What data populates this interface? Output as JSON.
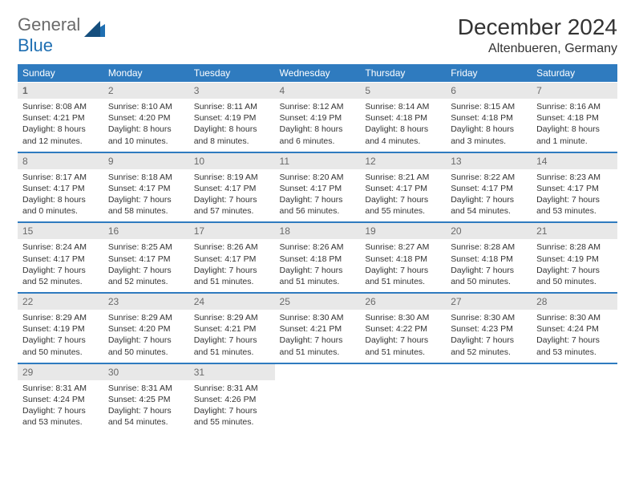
{
  "logo": {
    "general": "General",
    "blue": "Blue"
  },
  "title": "December 2024",
  "location": "Altenbueren, Germany",
  "weekdays": [
    "Sunday",
    "Monday",
    "Tuesday",
    "Wednesday",
    "Thursday",
    "Friday",
    "Saturday"
  ],
  "colors": {
    "header_bg": "#2f7bbf",
    "header_text": "#ffffff",
    "daynum_bg": "#e8e8e8",
    "daynum_text": "#6a6a6a",
    "body_text": "#333333",
    "row_divider": "#2f7bbf",
    "logo_gray": "#6a6a6a",
    "logo_blue": "#1f6fb2",
    "page_bg": "#ffffff"
  },
  "fonts": {
    "title_size_pt": 21,
    "location_size_pt": 12,
    "weekday_size_pt": 9,
    "daynum_size_pt": 9,
    "cell_size_pt": 8
  },
  "weeks": [
    {
      "nums": [
        {
          "n": "1",
          "bold": true
        },
        {
          "n": "2"
        },
        {
          "n": "3"
        },
        {
          "n": "4"
        },
        {
          "n": "5"
        },
        {
          "n": "6"
        },
        {
          "n": "7"
        }
      ],
      "cells": [
        {
          "sunrise": "Sunrise: 8:08 AM",
          "sunset": "Sunset: 4:21 PM",
          "day1": "Daylight: 8 hours",
          "day2": "and 12 minutes."
        },
        {
          "sunrise": "Sunrise: 8:10 AM",
          "sunset": "Sunset: 4:20 PM",
          "day1": "Daylight: 8 hours",
          "day2": "and 10 minutes."
        },
        {
          "sunrise": "Sunrise: 8:11 AM",
          "sunset": "Sunset: 4:19 PM",
          "day1": "Daylight: 8 hours",
          "day2": "and 8 minutes."
        },
        {
          "sunrise": "Sunrise: 8:12 AM",
          "sunset": "Sunset: 4:19 PM",
          "day1": "Daylight: 8 hours",
          "day2": "and 6 minutes."
        },
        {
          "sunrise": "Sunrise: 8:14 AM",
          "sunset": "Sunset: 4:18 PM",
          "day1": "Daylight: 8 hours",
          "day2": "and 4 minutes."
        },
        {
          "sunrise": "Sunrise: 8:15 AM",
          "sunset": "Sunset: 4:18 PM",
          "day1": "Daylight: 8 hours",
          "day2": "and 3 minutes."
        },
        {
          "sunrise": "Sunrise: 8:16 AM",
          "sunset": "Sunset: 4:18 PM",
          "day1": "Daylight: 8 hours",
          "day2": "and 1 minute."
        }
      ]
    },
    {
      "nums": [
        {
          "n": "8"
        },
        {
          "n": "9"
        },
        {
          "n": "10"
        },
        {
          "n": "11"
        },
        {
          "n": "12"
        },
        {
          "n": "13"
        },
        {
          "n": "14"
        }
      ],
      "cells": [
        {
          "sunrise": "Sunrise: 8:17 AM",
          "sunset": "Sunset: 4:17 PM",
          "day1": "Daylight: 8 hours",
          "day2": "and 0 minutes."
        },
        {
          "sunrise": "Sunrise: 8:18 AM",
          "sunset": "Sunset: 4:17 PM",
          "day1": "Daylight: 7 hours",
          "day2": "and 58 minutes."
        },
        {
          "sunrise": "Sunrise: 8:19 AM",
          "sunset": "Sunset: 4:17 PM",
          "day1": "Daylight: 7 hours",
          "day2": "and 57 minutes."
        },
        {
          "sunrise": "Sunrise: 8:20 AM",
          "sunset": "Sunset: 4:17 PM",
          "day1": "Daylight: 7 hours",
          "day2": "and 56 minutes."
        },
        {
          "sunrise": "Sunrise: 8:21 AM",
          "sunset": "Sunset: 4:17 PM",
          "day1": "Daylight: 7 hours",
          "day2": "and 55 minutes."
        },
        {
          "sunrise": "Sunrise: 8:22 AM",
          "sunset": "Sunset: 4:17 PM",
          "day1": "Daylight: 7 hours",
          "day2": "and 54 minutes."
        },
        {
          "sunrise": "Sunrise: 8:23 AM",
          "sunset": "Sunset: 4:17 PM",
          "day1": "Daylight: 7 hours",
          "day2": "and 53 minutes."
        }
      ]
    },
    {
      "nums": [
        {
          "n": "15"
        },
        {
          "n": "16"
        },
        {
          "n": "17"
        },
        {
          "n": "18"
        },
        {
          "n": "19"
        },
        {
          "n": "20"
        },
        {
          "n": "21"
        }
      ],
      "cells": [
        {
          "sunrise": "Sunrise: 8:24 AM",
          "sunset": "Sunset: 4:17 PM",
          "day1": "Daylight: 7 hours",
          "day2": "and 52 minutes."
        },
        {
          "sunrise": "Sunrise: 8:25 AM",
          "sunset": "Sunset: 4:17 PM",
          "day1": "Daylight: 7 hours",
          "day2": "and 52 minutes."
        },
        {
          "sunrise": "Sunrise: 8:26 AM",
          "sunset": "Sunset: 4:17 PM",
          "day1": "Daylight: 7 hours",
          "day2": "and 51 minutes."
        },
        {
          "sunrise": "Sunrise: 8:26 AM",
          "sunset": "Sunset: 4:18 PM",
          "day1": "Daylight: 7 hours",
          "day2": "and 51 minutes."
        },
        {
          "sunrise": "Sunrise: 8:27 AM",
          "sunset": "Sunset: 4:18 PM",
          "day1": "Daylight: 7 hours",
          "day2": "and 51 minutes."
        },
        {
          "sunrise": "Sunrise: 8:28 AM",
          "sunset": "Sunset: 4:18 PM",
          "day1": "Daylight: 7 hours",
          "day2": "and 50 minutes."
        },
        {
          "sunrise": "Sunrise: 8:28 AM",
          "sunset": "Sunset: 4:19 PM",
          "day1": "Daylight: 7 hours",
          "day2": "and 50 minutes."
        }
      ]
    },
    {
      "nums": [
        {
          "n": "22"
        },
        {
          "n": "23"
        },
        {
          "n": "24"
        },
        {
          "n": "25"
        },
        {
          "n": "26"
        },
        {
          "n": "27"
        },
        {
          "n": "28"
        }
      ],
      "cells": [
        {
          "sunrise": "Sunrise: 8:29 AM",
          "sunset": "Sunset: 4:19 PM",
          "day1": "Daylight: 7 hours",
          "day2": "and 50 minutes."
        },
        {
          "sunrise": "Sunrise: 8:29 AM",
          "sunset": "Sunset: 4:20 PM",
          "day1": "Daylight: 7 hours",
          "day2": "and 50 minutes."
        },
        {
          "sunrise": "Sunrise: 8:29 AM",
          "sunset": "Sunset: 4:21 PM",
          "day1": "Daylight: 7 hours",
          "day2": "and 51 minutes."
        },
        {
          "sunrise": "Sunrise: 8:30 AM",
          "sunset": "Sunset: 4:21 PM",
          "day1": "Daylight: 7 hours",
          "day2": "and 51 minutes."
        },
        {
          "sunrise": "Sunrise: 8:30 AM",
          "sunset": "Sunset: 4:22 PM",
          "day1": "Daylight: 7 hours",
          "day2": "and 51 minutes."
        },
        {
          "sunrise": "Sunrise: 8:30 AM",
          "sunset": "Sunset: 4:23 PM",
          "day1": "Daylight: 7 hours",
          "day2": "and 52 minutes."
        },
        {
          "sunrise": "Sunrise: 8:30 AM",
          "sunset": "Sunset: 4:24 PM",
          "day1": "Daylight: 7 hours",
          "day2": "and 53 minutes."
        }
      ]
    },
    {
      "nums": [
        {
          "n": "29"
        },
        {
          "n": "30"
        },
        {
          "n": "31"
        },
        {
          "n": ""
        },
        {
          "n": ""
        },
        {
          "n": ""
        },
        {
          "n": ""
        }
      ],
      "cells": [
        {
          "sunrise": "Sunrise: 8:31 AM",
          "sunset": "Sunset: 4:24 PM",
          "day1": "Daylight: 7 hours",
          "day2": "and 53 minutes."
        },
        {
          "sunrise": "Sunrise: 8:31 AM",
          "sunset": "Sunset: 4:25 PM",
          "day1": "Daylight: 7 hours",
          "day2": "and 54 minutes."
        },
        {
          "sunrise": "Sunrise: 8:31 AM",
          "sunset": "Sunset: 4:26 PM",
          "day1": "Daylight: 7 hours",
          "day2": "and 55 minutes."
        },
        {
          "empty": true
        },
        {
          "empty": true
        },
        {
          "empty": true
        },
        {
          "empty": true
        }
      ]
    }
  ]
}
